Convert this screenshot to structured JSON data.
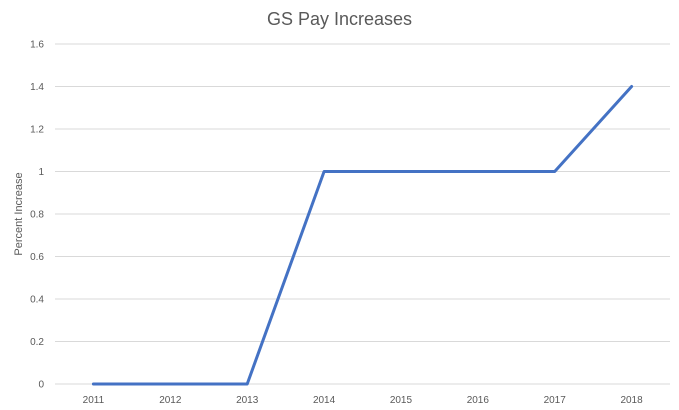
{
  "chart_data": {
    "type": "line",
    "title": "GS Pay Increases",
    "xlabel": "",
    "ylabel": "Percent Increase",
    "categories": [
      "2011",
      "2012",
      "2013",
      "2014",
      "2015",
      "2016",
      "2017",
      "2018"
    ],
    "series": [
      {
        "values": [
          0,
          0,
          0,
          1,
          1,
          1,
          1,
          1.4
        ]
      }
    ],
    "ylim": [
      0,
      1.6
    ],
    "yticks": [
      "0",
      "0.2",
      "0.4",
      "0.6",
      "0.8",
      "1",
      "1.2",
      "1.4",
      "1.6"
    ],
    "grid": true,
    "legend": "none",
    "colors": {
      "line": "#4472c4",
      "grid": "#d9d9d9",
      "text": "#595959"
    }
  }
}
